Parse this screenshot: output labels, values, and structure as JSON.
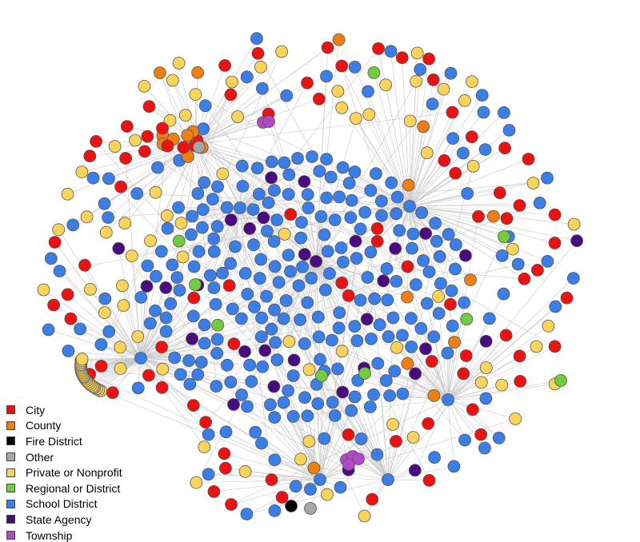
{
  "legend": {
    "items": [
      {
        "key": "city",
        "label": "City",
        "color": "#ee1111"
      },
      {
        "key": "county",
        "label": "County",
        "color": "#f07f11"
      },
      {
        "key": "fire",
        "label": "Fire District",
        "color": "#000000"
      },
      {
        "key": "other",
        "label": "Other",
        "color": "#a6a6a6"
      },
      {
        "key": "private",
        "label": "Private or Nonprofit",
        "color": "#fad45a"
      },
      {
        "key": "regional",
        "label": "Regional or District",
        "color": "#72cc3d"
      },
      {
        "key": "school",
        "label": "School District",
        "color": "#3b7ee8"
      },
      {
        "key": "state",
        "label": "State Agency",
        "color": "#4a0a80"
      },
      {
        "key": "township",
        "label": "Township",
        "color": "#b048c8"
      }
    ]
  },
  "network": {
    "node_border": "#555555",
    "edge_color": "#c8c8c8"
  }
}
